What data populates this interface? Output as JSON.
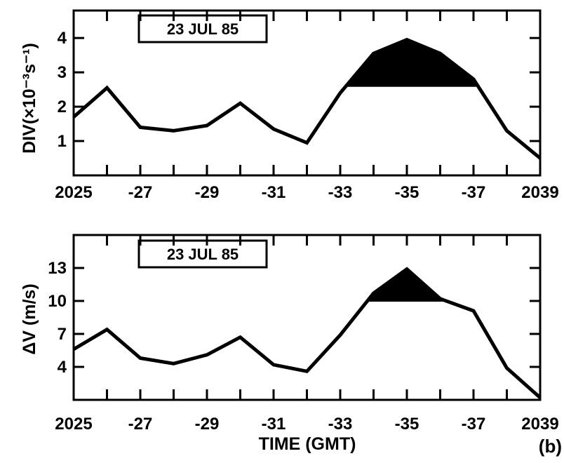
{
  "chart_data": [
    {
      "type": "line",
      "title": "23 JUL 85",
      "ylabel": "DIV(×10⁻³s⁻¹)",
      "xlabel": "",
      "x": [
        2025,
        2026,
        2027,
        2028,
        2029,
        2030,
        2031,
        2032,
        2033,
        2034,
        2035,
        2036,
        2037,
        2038,
        2039
      ],
      "values": [
        1.7,
        2.55,
        1.4,
        1.3,
        1.45,
        2.1,
        1.35,
        0.95,
        2.4,
        3.55,
        3.95,
        3.55,
        2.8,
        1.3,
        0.5
      ],
      "shaded_above": 2.6,
      "xlim": [
        2025,
        2039
      ],
      "ylim": [
        0,
        4.8
      ],
      "xtick_values": [
        2025,
        2027,
        2029,
        2031,
        2033,
        2035,
        2037,
        2039
      ],
      "xtick_labels": [
        "2025",
        "-27",
        "-29",
        "-31",
        "-33",
        "-35",
        "-37",
        "2039"
      ],
      "ytick_values": [
        1,
        2,
        3,
        4
      ],
      "ytick_labels": [
        "1",
        "2",
        "3",
        "4"
      ]
    },
    {
      "type": "line",
      "title": "23 JUL 85",
      "ylabel": "ΔV (m/s)",
      "xlabel": "TIME (GMT)",
      "x": [
        2025,
        2026,
        2027,
        2028,
        2029,
        2030,
        2031,
        2032,
        2033,
        2034,
        2035,
        2036,
        2037,
        2038,
        2039
      ],
      "values": [
        5.6,
        7.4,
        4.8,
        4.3,
        5.1,
        6.7,
        4.2,
        3.6,
        6.9,
        10.7,
        12.9,
        10.2,
        9.1,
        3.9,
        1.2
      ],
      "shaded_above": 10.0,
      "xlim": [
        2025,
        2039
      ],
      "ylim": [
        1,
        16
      ],
      "xtick_values": [
        2025,
        2027,
        2029,
        2031,
        2033,
        2035,
        2037,
        2039
      ],
      "xtick_labels": [
        "2025",
        "-27",
        "-29",
        "-31",
        "-33",
        "-35",
        "-37",
        "2039"
      ],
      "ytick_values": [
        4,
        7,
        10,
        13
      ],
      "ytick_labels": [
        "4",
        "7",
        "10",
        "13"
      ]
    }
  ],
  "panel_label": "(b)"
}
